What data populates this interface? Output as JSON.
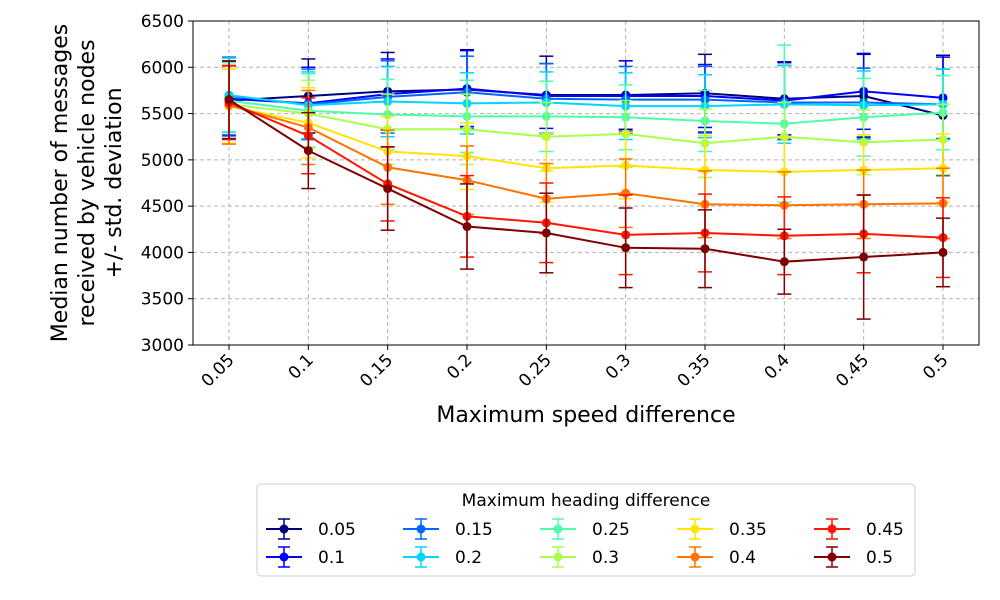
{
  "chart_data": {
    "type": "line",
    "title": "",
    "xlabel": "Maximum speed difference",
    "ylabel_lines": [
      "Median number of messages",
      "received by vehicle nodes",
      "+/- std. deviation"
    ],
    "categories": [
      "0.05",
      "0.1",
      "0.15",
      "0.2",
      "0.25",
      "0.3",
      "0.35",
      "0.4",
      "0.45",
      "0.5"
    ],
    "ylim": [
      3000,
      6500
    ],
    "yticks": [
      "3000",
      "3500",
      "4000",
      "4500",
      "5000",
      "5500",
      "6000",
      "6500"
    ],
    "grid": true,
    "error_bars": true,
    "legend": {
      "title": "Maximum heading difference",
      "placement": "bottom-center",
      "columns": 5
    },
    "series": [
      {
        "name": "0.05",
        "color": "#00007f",
        "values": [
          5640,
          5690,
          5740,
          5760,
          5700,
          5700,
          5720,
          5660,
          5690,
          5480
        ],
        "errors": [
          420,
          400,
          420,
          430,
          420,
          370,
          420,
          390,
          450,
          650
        ]
      },
      {
        "name": "0.1",
        "color": "#0000ff",
        "values": [
          5660,
          5610,
          5710,
          5770,
          5690,
          5690,
          5690,
          5640,
          5740,
          5670
        ],
        "errors": [
          400,
          390,
          380,
          410,
          350,
          380,
          340,
          420,
          410,
          440
        ]
      },
      {
        "name": "0.15",
        "color": "#0066ff",
        "values": [
          5690,
          5600,
          5680,
          5730,
          5660,
          5650,
          5650,
          5620,
          5620,
          5600
        ],
        "errors": [
          420,
          380,
          390,
          390,
          380,
          360,
          360,
          400,
          370,
          380
        ]
      },
      {
        "name": "0.2",
        "color": "#00d5ff",
        "values": [
          5700,
          5590,
          5630,
          5610,
          5620,
          5580,
          5580,
          5600,
          5590,
          5600
        ],
        "errors": [
          400,
          360,
          380,
          330,
          330,
          360,
          340,
          420,
          370,
          380
        ]
      },
      {
        "name": "0.25",
        "color": "#4dffa9",
        "values": [
          5640,
          5530,
          5490,
          5470,
          5470,
          5460,
          5420,
          5390,
          5460,
          5510
        ],
        "errors": [
          410,
          400,
          380,
          390,
          380,
          350,
          330,
          850,
          420,
          400
        ]
      },
      {
        "name": "0.3",
        "color": "#a9ff4d",
        "values": [
          5600,
          5500,
          5330,
          5330,
          5250,
          5280,
          5180,
          5250,
          5190,
          5220
        ],
        "errors": [
          380,
          360,
          380,
          380,
          370,
          360,
          370,
          370,
          350,
          380
        ]
      },
      {
        "name": "0.35",
        "color": "#ffe500",
        "values": [
          5580,
          5400,
          5090,
          5040,
          4910,
          4940,
          4890,
          4870,
          4890,
          4910
        ],
        "errors": [
          400,
          380,
          380,
          360,
          370,
          360,
          370,
          370,
          380,
          370
        ]
      },
      {
        "name": "0.4",
        "color": "#ff7300",
        "values": [
          5590,
          5350,
          4920,
          4780,
          4580,
          4640,
          4520,
          4510,
          4520,
          4530
        ],
        "errors": [
          420,
          400,
          400,
          370,
          380,
          370,
          360,
          360,
          370,
          380
        ]
      },
      {
        "name": "0.45",
        "color": "#ff1400",
        "values": [
          5620,
          5260,
          4740,
          4390,
          4320,
          4190,
          4210,
          4180,
          4200,
          4160
        ],
        "errors": [
          400,
          410,
          400,
          440,
          430,
          430,
          420,
          420,
          420,
          430
        ]
      },
      {
        "name": "0.5",
        "color": "#7f0000",
        "values": [
          5650,
          5100,
          4690,
          4280,
          4210,
          4050,
          4040,
          3900,
          3950,
          4000
        ],
        "errors": [
          420,
          410,
          450,
          460,
          430,
          430,
          420,
          350,
          670,
          370
        ]
      }
    ]
  }
}
